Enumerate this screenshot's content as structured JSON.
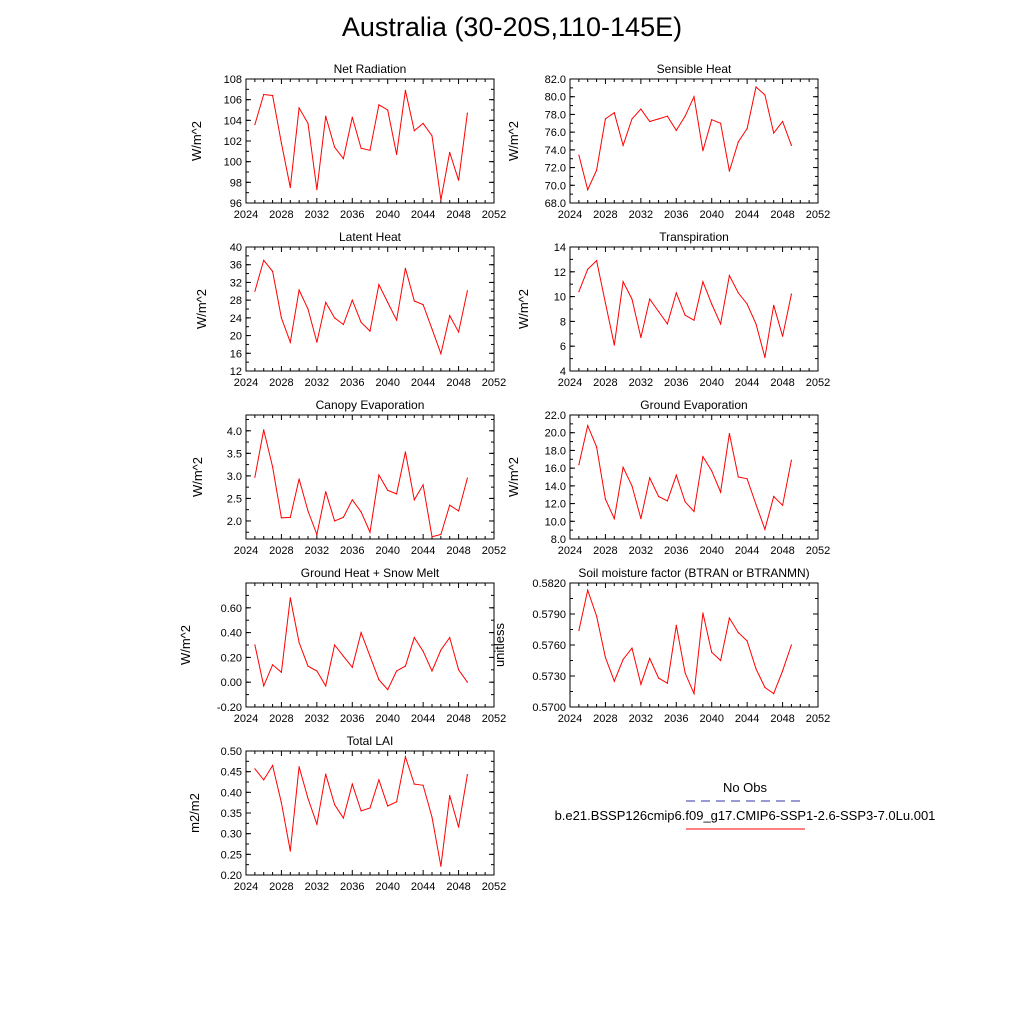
{
  "title": "Australia (30-20S,110-145E)",
  "colors": {
    "model_line": "#ff0000",
    "obs_line": "#3333aa"
  },
  "legend": {
    "obs_label": "No Obs",
    "model_label": "b.e21.BSSP126cmip6.f09_g17.CMIP6-SSP1-2.6-SSP3-7.0Lu.001"
  },
  "chart_data": [
    {
      "type": "line",
      "title": "Net Radiation",
      "ylabel": "W/m^2",
      "xlim": [
        2024,
        2052
      ],
      "ylim": [
        96,
        108
      ],
      "xticks": [
        "2024",
        "2028",
        "2032",
        "2036",
        "2040",
        "2044",
        "2048",
        "2052"
      ],
      "yticks": [
        "96",
        "98",
        "100",
        "102",
        "104",
        "106",
        "108"
      ],
      "x": [
        2025,
        2026,
        2027,
        2028,
        2029,
        2030,
        2031,
        2032,
        2033,
        2034,
        2035,
        2036,
        2037,
        2038,
        2039,
        2040,
        2041,
        2042,
        2043,
        2044,
        2045,
        2046,
        2047,
        2048,
        2049
      ],
      "series": [
        {
          "values": [
            103.6,
            106.5,
            106.4,
            101.8,
            97.5,
            105.2,
            103.7,
            97.3,
            104.4,
            101.4,
            100.3,
            104.3,
            101.3,
            101.1,
            105.5,
            105.0,
            100.7,
            106.9,
            103.0,
            103.7,
            102.5,
            96.3,
            100.9,
            98.2,
            104.7
          ]
        }
      ]
    },
    {
      "type": "line",
      "title": "Sensible Heat",
      "ylabel": "W/m^2",
      "xlim": [
        2024,
        2052
      ],
      "ylim": [
        68,
        82
      ],
      "xticks": [
        "2024",
        "2028",
        "2032",
        "2036",
        "2040",
        "2044",
        "2048",
        "2052"
      ],
      "yticks": [
        "68.0",
        "70.0",
        "72.0",
        "74.0",
        "76.0",
        "78.0",
        "80.0",
        "82.0"
      ],
      "x": [
        2025,
        2026,
        2027,
        2028,
        2029,
        2030,
        2031,
        2032,
        2033,
        2034,
        2035,
        2036,
        2037,
        2038,
        2039,
        2040,
        2041,
        2042,
        2043,
        2044,
        2045,
        2046,
        2047,
        2048,
        2049
      ],
      "series": [
        {
          "values": [
            73.4,
            69.5,
            71.7,
            77.5,
            78.2,
            74.5,
            77.5,
            78.6,
            77.2,
            77.5,
            77.8,
            76.2,
            77.8,
            80.0,
            73.9,
            77.4,
            77.0,
            71.6,
            74.9,
            76.4,
            81.1,
            80.2,
            75.9,
            77.2,
            74.5
          ]
        }
      ]
    },
    {
      "type": "line",
      "title": "Latent Heat",
      "ylabel": "W/m^2",
      "xlim": [
        2024,
        2052
      ],
      "ylim": [
        12,
        40
      ],
      "xticks": [
        "2024",
        "2028",
        "2032",
        "2036",
        "2040",
        "2044",
        "2048",
        "2052"
      ],
      "yticks": [
        "12",
        "16",
        "20",
        "24",
        "28",
        "32",
        "36",
        "40"
      ],
      "x": [
        2025,
        2026,
        2027,
        2028,
        2029,
        2030,
        2031,
        2032,
        2033,
        2034,
        2035,
        2036,
        2037,
        2038,
        2039,
        2040,
        2041,
        2042,
        2043,
        2044,
        2045,
        2046,
        2047,
        2048,
        2049
      ],
      "series": [
        {
          "values": [
            30.0,
            37.0,
            34.5,
            24.0,
            18.5,
            30.3,
            26.0,
            18.5,
            27.5,
            24.0,
            22.5,
            28.0,
            23.0,
            21.0,
            31.5,
            27.5,
            23.5,
            35.2,
            27.8,
            27.0,
            21.5,
            15.9,
            24.5,
            20.8,
            30.1
          ]
        }
      ]
    },
    {
      "type": "line",
      "title": "Transpiration",
      "ylabel": "W/m^2",
      "xlim": [
        2024,
        2052
      ],
      "ylim": [
        4,
        14
      ],
      "xticks": [
        "2024",
        "2028",
        "2032",
        "2036",
        "2040",
        "2044",
        "2048",
        "2052"
      ],
      "yticks": [
        "4",
        "6",
        "8",
        "10",
        "12",
        "14"
      ],
      "x": [
        2025,
        2026,
        2027,
        2028,
        2029,
        2030,
        2031,
        2032,
        2033,
        2034,
        2035,
        2036,
        2037,
        2038,
        2039,
        2040,
        2041,
        2042,
        2043,
        2044,
        2045,
        2046,
        2047,
        2048,
        2049
      ],
      "series": [
        {
          "values": [
            10.4,
            12.2,
            12.9,
            9.5,
            6.1,
            11.2,
            9.8,
            6.7,
            9.8,
            8.8,
            7.8,
            10.3,
            8.5,
            8.1,
            11.2,
            9.4,
            7.8,
            11.7,
            10.3,
            9.4,
            7.8,
            5.1,
            9.3,
            6.8,
            10.2
          ]
        }
      ]
    },
    {
      "type": "line",
      "title": "Canopy Evaporation",
      "ylabel": "W/m^2",
      "xlim": [
        2024,
        2052
      ],
      "ylim": [
        1.6,
        4.35
      ],
      "xticks": [
        "2024",
        "2028",
        "2032",
        "2036",
        "2040",
        "2044",
        "2048",
        "2052"
      ],
      "yticks": [
        "2.0",
        "2.5",
        "3.0",
        "3.5",
        "4.0"
      ],
      "x": [
        2025,
        2026,
        2027,
        2028,
        2029,
        2030,
        2031,
        2032,
        2033,
        2034,
        2035,
        2036,
        2037,
        2038,
        2039,
        2040,
        2041,
        2042,
        2043,
        2044,
        2045,
        2046,
        2047,
        2048,
        2049
      ],
      "series": [
        {
          "values": [
            2.97,
            4.02,
            3.2,
            2.07,
            2.08,
            2.93,
            2.22,
            1.7,
            2.65,
            2.0,
            2.08,
            2.47,
            2.2,
            1.75,
            3.02,
            2.68,
            2.6,
            3.53,
            2.47,
            2.8,
            1.65,
            1.7,
            2.35,
            2.22,
            2.95
          ]
        }
      ]
    },
    {
      "type": "line",
      "title": "Ground Evaporation",
      "ylabel": "W/m^2",
      "xlim": [
        2024,
        2052
      ],
      "ylim": [
        8,
        22
      ],
      "xticks": [
        "2024",
        "2028",
        "2032",
        "2036",
        "2040",
        "2044",
        "2048",
        "2052"
      ],
      "yticks": [
        "8.0",
        "10.0",
        "12.0",
        "14.0",
        "16.0",
        "18.0",
        "20.0",
        "22.0"
      ],
      "x": [
        2025,
        2026,
        2027,
        2028,
        2029,
        2030,
        2031,
        2032,
        2033,
        2034,
        2035,
        2036,
        2037,
        2038,
        2039,
        2040,
        2041,
        2042,
        2043,
        2044,
        2045,
        2046,
        2047,
        2048,
        2049
      ],
      "series": [
        {
          "values": [
            16.4,
            20.8,
            18.4,
            12.5,
            10.3,
            16.1,
            14.0,
            10.3,
            14.9,
            12.8,
            12.3,
            15.2,
            12.2,
            11.1,
            17.3,
            15.7,
            13.3,
            19.9,
            15.0,
            14.8,
            11.9,
            9.1,
            12.8,
            11.8,
            16.9
          ]
        }
      ]
    },
    {
      "type": "line",
      "title": "Ground Heat + Snow Melt",
      "ylabel": "W/m^2",
      "xlim": [
        2024,
        2052
      ],
      "ylim": [
        -0.2,
        0.8
      ],
      "xticks": [
        "2024",
        "2028",
        "2032",
        "2036",
        "2040",
        "2044",
        "2048",
        "2052"
      ],
      "yticks": [
        "-0.20",
        "0.00",
        "0.20",
        "0.40",
        "0.60"
      ],
      "x": [
        2025,
        2026,
        2027,
        2028,
        2029,
        2030,
        2031,
        2032,
        2033,
        2034,
        2035,
        2036,
        2037,
        2038,
        2039,
        2040,
        2041,
        2042,
        2043,
        2044,
        2045,
        2046,
        2047,
        2048,
        2049
      ],
      "series": [
        {
          "values": [
            0.3,
            -0.03,
            0.14,
            0.08,
            0.68,
            0.32,
            0.13,
            0.09,
            -0.03,
            0.3,
            0.21,
            0.12,
            0.4,
            0.21,
            0.02,
            -0.06,
            0.09,
            0.13,
            0.36,
            0.25,
            0.09,
            0.26,
            0.36,
            0.1,
            0.0
          ]
        }
      ]
    },
    {
      "type": "line",
      "title": "Soil moisture factor (BTRAN or BTRANMN)",
      "ylabel": "unitless",
      "xlim": [
        2024,
        2052
      ],
      "ylim": [
        0.57,
        0.582
      ],
      "xticks": [
        "2024",
        "2028",
        "2032",
        "2036",
        "2040",
        "2044",
        "2048",
        "2052"
      ],
      "yticks": [
        "0.5700",
        "0.5730",
        "0.5760",
        "0.5790",
        "0.5820"
      ],
      "x": [
        2025,
        2026,
        2027,
        2028,
        2029,
        2030,
        2031,
        2032,
        2033,
        2034,
        2035,
        2036,
        2037,
        2038,
        2039,
        2040,
        2041,
        2042,
        2043,
        2044,
        2045,
        2046,
        2047,
        2048,
        2049
      ],
      "series": [
        {
          "values": [
            0.5774,
            0.5813,
            0.5788,
            0.5748,
            0.5725,
            0.5746,
            0.5757,
            0.5722,
            0.5747,
            0.5728,
            0.5723,
            0.5779,
            0.5733,
            0.5713,
            0.5791,
            0.5753,
            0.5745,
            0.5786,
            0.5772,
            0.5764,
            0.5737,
            0.5719,
            0.5713,
            0.5735,
            0.576
          ]
        }
      ]
    },
    {
      "type": "line",
      "title": "Total LAI",
      "ylabel": "m2/m2",
      "xlim": [
        2024,
        2052
      ],
      "ylim": [
        0.2,
        0.5
      ],
      "xticks": [
        "2024",
        "2028",
        "2032",
        "2036",
        "2040",
        "2044",
        "2048",
        "2052"
      ],
      "yticks": [
        "0.20",
        "0.25",
        "0.30",
        "0.35",
        "0.40",
        "0.45",
        "0.50"
      ],
      "x": [
        2025,
        2026,
        2027,
        2028,
        2029,
        2030,
        2031,
        2032,
        2033,
        2034,
        2035,
        2036,
        2037,
        2038,
        2039,
        2040,
        2041,
        2042,
        2043,
        2044,
        2045,
        2046,
        2047,
        2048,
        2049
      ],
      "series": [
        {
          "values": [
            0.457,
            0.43,
            0.465,
            0.375,
            0.258,
            0.462,
            0.385,
            0.323,
            0.444,
            0.37,
            0.338,
            0.42,
            0.355,
            0.362,
            0.43,
            0.367,
            0.377,
            0.486,
            0.42,
            0.417,
            0.34,
            0.221,
            0.392,
            0.316,
            0.443
          ]
        }
      ]
    }
  ]
}
